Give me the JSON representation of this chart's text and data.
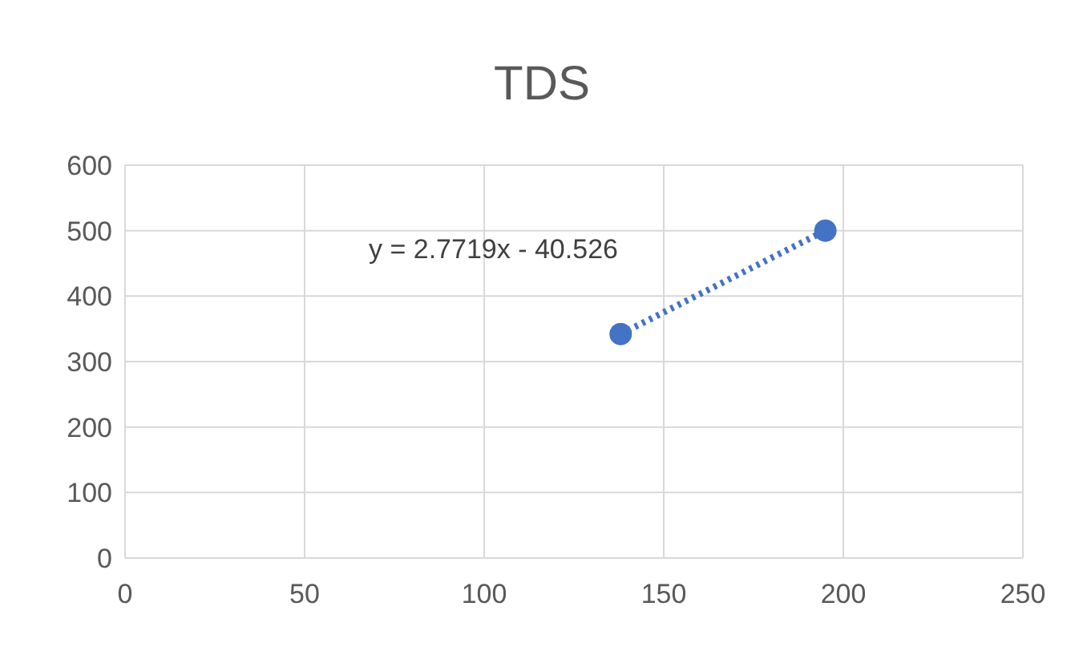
{
  "chart_data": {
    "type": "scatter",
    "title": "TDS",
    "x": [
      138,
      195
    ],
    "series": [
      {
        "type": "scatter",
        "color": "#4472c4",
        "values": [
          342,
          500
        ],
        "marker": "circle"
      },
      {
        "type": "line",
        "color": "#4472c4",
        "values": [
          342,
          500
        ],
        "marker": "none",
        "line_style": "dotted"
      }
    ],
    "annotations": [
      "y = 2.7719x - 40.526"
    ],
    "xlim": [
      0,
      250
    ],
    "xticks": [
      0,
      50,
      100,
      150,
      200,
      250
    ],
    "ylim": [
      0,
      600
    ],
    "yticks": [
      0,
      100,
      200,
      300,
      400,
      500,
      600
    ],
    "grid": true,
    "legend": false
  }
}
